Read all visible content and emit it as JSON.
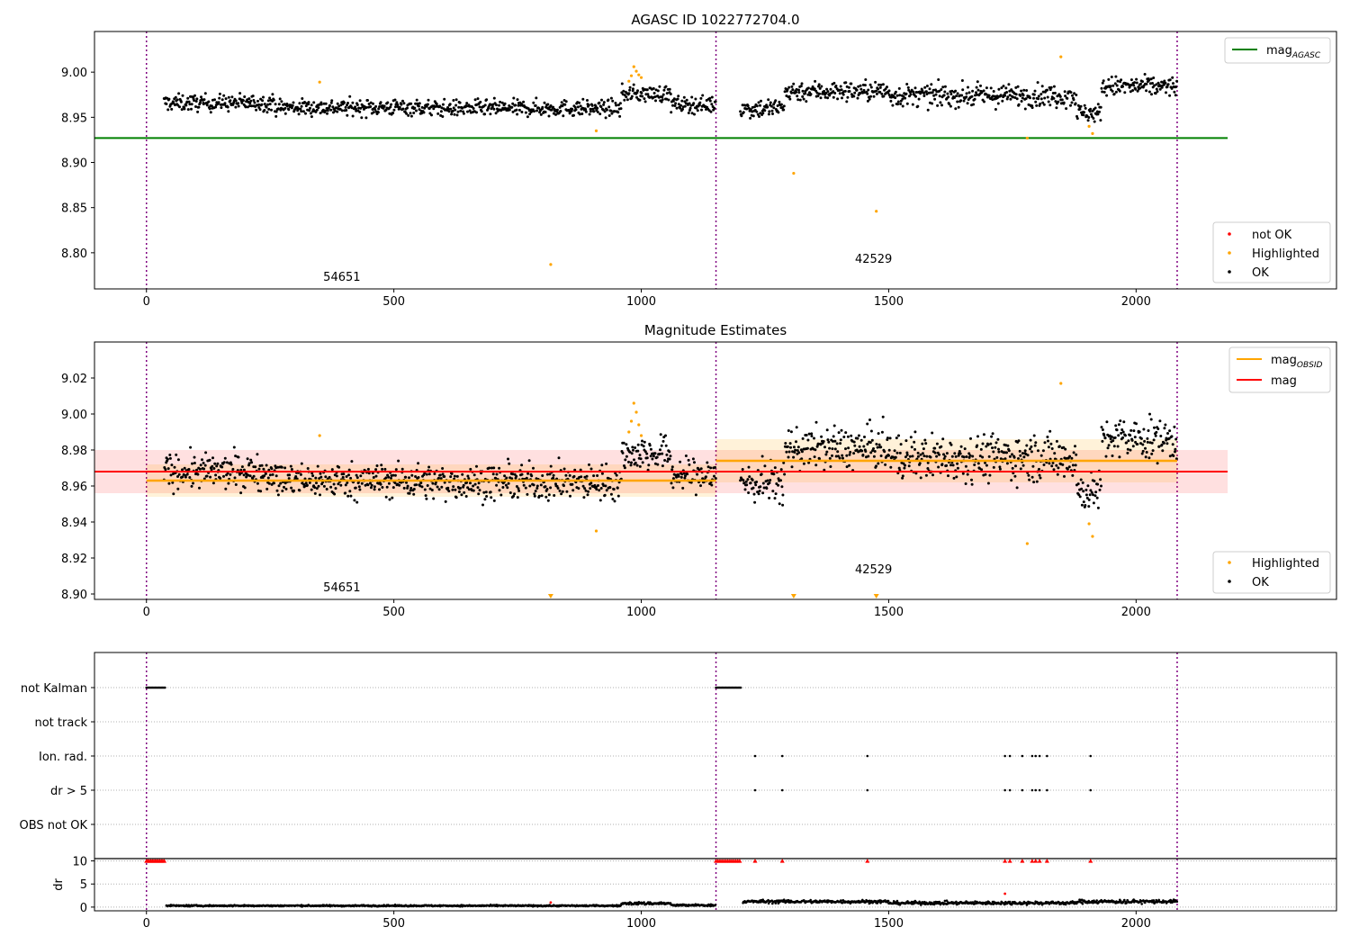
{
  "figure": {
    "title": "AGASC ID 1022772704.0",
    "x_ticks": [
      0,
      500,
      1000,
      1500,
      2000
    ],
    "xlim": [
      -105,
      2405
    ],
    "obsid_boundaries": [
      0,
      1151,
      2083
    ],
    "obsid_labels": [
      {
        "text": "54651",
        "x": 575
      },
      {
        "text": "42529",
        "x": 1615
      }
    ],
    "colors": {
      "ok": "#000000",
      "highlighted": "#ffa500",
      "not_ok": "#ff0000",
      "mag_agasc": "#008000",
      "mag": "#ff0000",
      "mag_obsid": "#ffa500",
      "boundary": "#800080"
    }
  },
  "chart_data": [
    {
      "type": "scatter",
      "panel": "top",
      "title": "",
      "ylim": [
        8.76,
        9.045
      ],
      "y_ticks": [
        "8.80",
        "8.85",
        "8.90",
        "8.95",
        "9.00"
      ],
      "mag_agasc": {
        "value": 8.927,
        "x_range": [
          -105,
          2185
        ]
      },
      "legend_lines": [
        {
          "label": "mag",
          "sub": "AGASC",
          "color": "#008000"
        }
      ],
      "legend_points": [
        {
          "label": "not OK",
          "color": "#ff0000"
        },
        {
          "label": "Highlighted",
          "color": "#ffa500"
        },
        {
          "label": "OK",
          "color": "#000000"
        }
      ],
      "highlighted_points": [
        {
          "x": 350,
          "y": 8.989
        },
        {
          "x": 817,
          "y": 8.787
        },
        {
          "x": 909,
          "y": 8.935
        },
        {
          "x": 975,
          "y": 8.99
        },
        {
          "x": 980,
          "y": 8.996
        },
        {
          "x": 985,
          "y": 9.006
        },
        {
          "x": 990,
          "y": 9.001
        },
        {
          "x": 995,
          "y": 8.997
        },
        {
          "x": 1000,
          "y": 8.994
        },
        {
          "x": 1308,
          "y": 8.888
        },
        {
          "x": 1475,
          "y": 8.846
        },
        {
          "x": 1780,
          "y": 8.927
        },
        {
          "x": 1848,
          "y": 9.017
        },
        {
          "x": 1905,
          "y": 8.94
        },
        {
          "x": 1912,
          "y": 8.932
        }
      ],
      "ok_segments": [
        {
          "x": [
            35,
            260
          ],
          "base": 8.966,
          "noise": 0.009
        },
        {
          "x": [
            260,
            560
          ],
          "base": 8.961,
          "noise": 0.009
        },
        {
          "x": [
            560,
            960
          ],
          "base": 8.96,
          "noise": 0.009
        },
        {
          "x": [
            960,
            1060
          ],
          "base": 8.976,
          "noise": 0.009
        },
        {
          "x": [
            1060,
            1151
          ],
          "base": 8.964,
          "noise": 0.009
        },
        {
          "x": [
            1200,
            1290
          ],
          "base": 8.96,
          "noise": 0.011
        },
        {
          "x": [
            1290,
            1500
          ],
          "base": 8.979,
          "noise": 0.011
        },
        {
          "x": [
            1500,
            1880
          ],
          "base": 8.974,
          "noise": 0.012
        },
        {
          "x": [
            1880,
            1930
          ],
          "base": 8.955,
          "noise": 0.01
        },
        {
          "x": [
            1930,
            2083
          ],
          "base": 8.984,
          "noise": 0.011
        }
      ]
    },
    {
      "type": "scatter",
      "panel": "middle",
      "title": "Magnitude Estimates",
      "ylim": [
        8.897,
        9.04
      ],
      "y_ticks": [
        "8.90",
        "8.92",
        "8.94",
        "8.96",
        "8.98",
        "9.00",
        "9.02"
      ],
      "mag": {
        "value": 8.968,
        "band": [
          8.956,
          8.98
        ],
        "x_range": [
          -105,
          2185
        ]
      },
      "mag_obsid": [
        {
          "x": [
            0,
            1151
          ],
          "value": 8.963,
          "band": [
            8.954,
            8.972
          ]
        },
        {
          "x": [
            1151,
            2083
          ],
          "value": 8.974,
          "band": [
            8.962,
            8.986
          ]
        }
      ],
      "legend_lines": [
        {
          "label": "mag",
          "sub": "OBSID",
          "color": "#ffa500"
        },
        {
          "label": "mag",
          "sub": "",
          "color": "#ff0000"
        }
      ],
      "legend_points": [
        {
          "label": "Highlighted",
          "color": "#ffa500"
        },
        {
          "label": "OK",
          "color": "#000000"
        }
      ],
      "highlighted_points": [
        {
          "x": 350,
          "y": 8.988
        },
        {
          "x": 909,
          "y": 8.935
        },
        {
          "x": 975,
          "y": 8.99
        },
        {
          "x": 980,
          "y": 8.996
        },
        {
          "x": 985,
          "y": 9.006
        },
        {
          "x": 990,
          "y": 9.001
        },
        {
          "x": 995,
          "y": 8.994
        },
        {
          "x": 1000,
          "y": 8.988
        },
        {
          "x": 1780,
          "y": 8.928
        },
        {
          "x": 1848,
          "y": 9.017
        },
        {
          "x": 1905,
          "y": 8.939
        },
        {
          "x": 1912,
          "y": 8.932
        }
      ],
      "off_scale_markers": [
        817,
        1308,
        1475
      ]
    },
    {
      "type": "scatter",
      "panel": "flags",
      "title": "",
      "categories": [
        "not Kalman",
        "not track",
        "Ion. rad.",
        "dr > 5",
        "OBS not OK"
      ],
      "not_kalman_ranges": [
        [
          0,
          38
        ],
        [
          1151,
          1202
        ]
      ],
      "ion_rad_x": [
        1230,
        1285,
        1457,
        1735,
        1745,
        1770,
        1790,
        1797,
        1805,
        1820,
        1908
      ],
      "dr_gt_5_x": [
        1230,
        1285,
        1457,
        1735,
        1745,
        1770,
        1790,
        1797,
        1805,
        1820,
        1908
      ]
    },
    {
      "type": "scatter",
      "panel": "dr",
      "title": "",
      "ylabel": "dr",
      "ylim": [
        -0.8,
        10.5
      ],
      "y_ticks": [
        "0",
        "5",
        "10"
      ],
      "clipped_x": [
        0,
        3,
        6,
        9,
        12,
        15,
        18,
        21,
        24,
        27,
        30,
        33,
        36,
        1151,
        1155,
        1159,
        1163,
        1167,
        1171,
        1175,
        1179,
        1183,
        1187,
        1191,
        1195,
        1199,
        1230,
        1285,
        1457,
        1735,
        1745,
        1770,
        1790,
        1797,
        1805,
        1820,
        1908
      ],
      "red_points": [
        {
          "x": 1735,
          "y": 2.9
        },
        {
          "x": 817,
          "y": 1.0
        }
      ],
      "ok_segments": [
        {
          "x": [
            40,
            960
          ],
          "base": 0.3,
          "noise": 0.15
        },
        {
          "x": [
            960,
            1060
          ],
          "base": 0.8,
          "noise": 0.3
        },
        {
          "x": [
            1060,
            1151
          ],
          "base": 0.4,
          "noise": 0.2
        },
        {
          "x": [
            1205,
            1500
          ],
          "base": 1.2,
          "noise": 0.35
        },
        {
          "x": [
            1500,
            1880
          ],
          "base": 0.9,
          "noise": 0.35
        },
        {
          "x": [
            1880,
            2083
          ],
          "base": 1.2,
          "noise": 0.4
        }
      ]
    }
  ]
}
